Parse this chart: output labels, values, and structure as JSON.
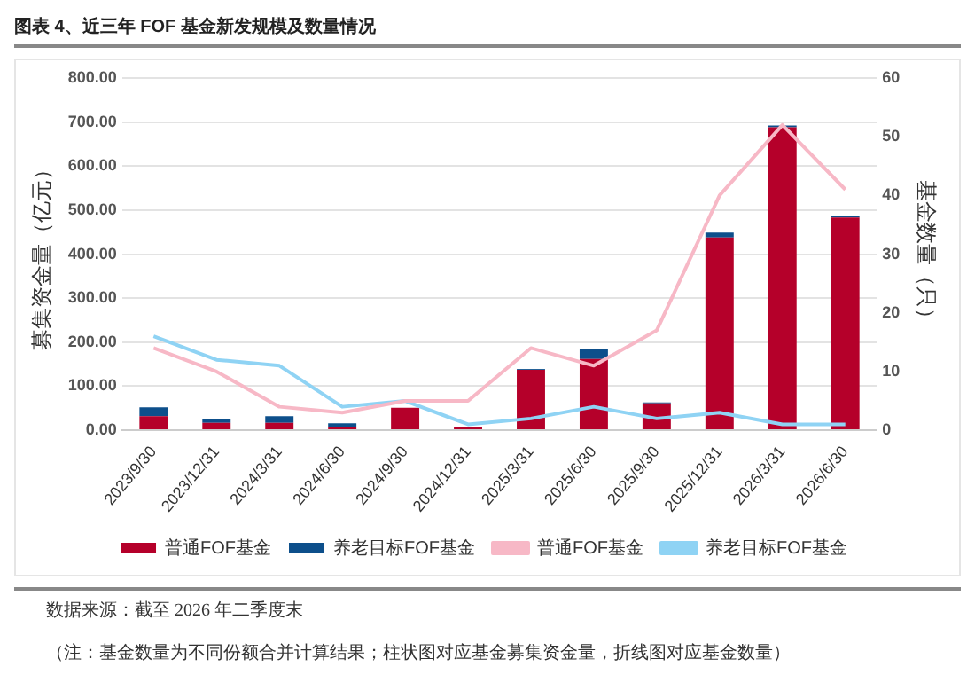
{
  "chart_data": {
    "type": "bar",
    "title": "图表 4、近三年 FOF 基金新发规模及数量情况",
    "ylabel": "募集资金量（亿元）",
    "y2label": "基金数量（只）",
    "categories": [
      "2023/9/30",
      "2023/12/31",
      "2024/3/31",
      "2024/6/30",
      "2024/9/30",
      "2024/12/31",
      "2025/3/31",
      "2025/6/30",
      "2025/9/30",
      "2025/12/31",
      "2026/3/31",
      "2026/6/30"
    ],
    "stacked": true,
    "series": [
      {
        "name": "普通FOF基金",
        "color": "#b5002a",
        "values": [
          32,
          17,
          17,
          8,
          51,
          8,
          137,
          162,
          61,
          438,
          688,
          483
        ]
      },
      {
        "name": "养老目标FOF基金",
        "color": "#0d4f8b",
        "values": [
          20,
          9,
          15,
          8,
          null,
          null,
          2,
          22,
          2,
          11,
          4,
          4
        ]
      },
      {
        "name": "普通FOF基金",
        "type": "line",
        "axis": "y2",
        "color": "#f7b8c6",
        "values": [
          14,
          10,
          4,
          3,
          5,
          5,
          14,
          11,
          17,
          40,
          52,
          41
        ]
      },
      {
        "name": "养老目标FOF基金",
        "type": "line",
        "axis": "y2",
        "color": "#8fd3f4",
        "values": [
          16,
          12,
          11,
          4,
          5,
          1,
          2,
          4,
          2,
          3,
          1,
          1
        ]
      }
    ],
    "ylim": [
      0,
      800
    ],
    "yticks": [
      {
        "value": 0,
        "label": "0.00"
      },
      {
        "value": 100,
        "label": "100.00"
      },
      {
        "value": 200,
        "label": "200.00"
      },
      {
        "value": 300,
        "label": "300.00"
      },
      {
        "value": 400,
        "label": "400.00"
      },
      {
        "value": 500,
        "label": "500.00"
      },
      {
        "value": 600,
        "label": "600.00"
      },
      {
        "value": 700,
        "label": "700.00"
      },
      {
        "value": 800,
        "label": "800.00"
      }
    ],
    "y2lim": [
      0,
      60
    ],
    "y2ticks": [
      0,
      10,
      20,
      30,
      40,
      50,
      60
    ],
    "grid": "y",
    "legend": "bottom",
    "marker": "none",
    "annotations": [
      "数据来源：截至 2026 年二季度末",
      "（注：基金数量为不同份额合并计算结果；柱状图对应基金募集资金量，折线图对应基金数量）"
    ]
  }
}
